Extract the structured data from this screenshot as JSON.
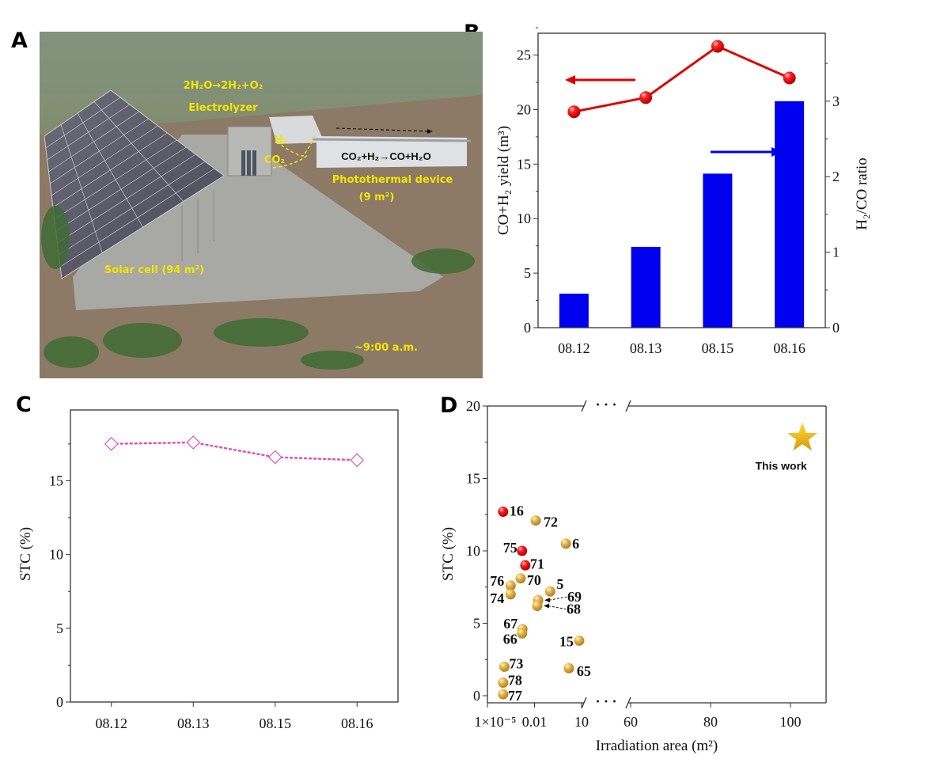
{
  "panel_letters": {
    "a": "A",
    "b": "B",
    "c": "C",
    "d": "D"
  },
  "photo": {
    "electrolysis_reaction": "2H₂O→2H₂+O₂",
    "electrolyzer_label": "Electrolyzer",
    "h2_label": "H₂",
    "co2_label": "CO₂",
    "photothermal_reaction": "CO₂+H₂→CO+H₂O",
    "photothermal_label": "Photothermal device",
    "photothermal_area": "(9 m²)",
    "solar_cell_label": "Solar cell (94 m²)",
    "time_label": "~9:00 a.m."
  },
  "chart_data": [
    {
      "panel": "B",
      "type": "bar+line",
      "categories": [
        "08.12",
        "08.13",
        "08.15",
        "08.16"
      ],
      "xlabel": "",
      "ylabel_left": "CO+H₂ yield (m³)",
      "ylabel_right": "H₂/CO ratio",
      "ylim_left": [
        0,
        27
      ],
      "ylim_right": [
        0,
        3.9
      ],
      "yticks_left": [
        "0",
        "5",
        "10",
        "15",
        "20",
        "25"
      ],
      "yticks_right": [
        "0",
        "1",
        "2",
        "3"
      ],
      "series": [
        {
          "axis": "left",
          "type": "line",
          "marker": "sphere",
          "color": "#e00000",
          "values": [
            19.8,
            21.1,
            25.8,
            22.9
          ]
        },
        {
          "axis": "right",
          "type": "bar",
          "color": "#0000f0",
          "values": [
            0.45,
            1.07,
            2.04,
            3.0
          ]
        }
      ],
      "grid": false
    },
    {
      "panel": "C",
      "type": "line",
      "categories": [
        "08.12",
        "08.13",
        "08.15",
        "08.16"
      ],
      "xlabel": "",
      "ylabel": "STC  (%)",
      "ylim": [
        0,
        19.8
      ],
      "yticks": [
        "0",
        "5",
        "10",
        "15"
      ],
      "series": [
        {
          "values": [
            17.5,
            17.6,
            16.6,
            16.4
          ],
          "color": "#e050c0",
          "marker": "open-diamond",
          "line": "dotted"
        }
      ],
      "grid": false
    },
    {
      "panel": "D",
      "type": "scatter",
      "xlabel": "Irradiation area (m²)",
      "ylabel": "STC (%)",
      "x_axis": "broken: log 1×10⁻⁵–10, linear 60–108",
      "xticks": [
        "1×10⁻⁵",
        "0.01",
        "10",
        "60",
        "80",
        "100"
      ],
      "xtick_values": [
        1e-05,
        0.01,
        10,
        60,
        80,
        100
      ],
      "yticks": [
        "0",
        "5",
        "10",
        "15",
        "20"
      ],
      "ylim": [
        -0.5,
        20
      ],
      "break_mark": "· · ·",
      "colors": {
        "reference": "#e0a820",
        "highlight": "#e00000",
        "this_work": "#f0b800"
      },
      "points": [
        {
          "label": "16",
          "x": 0.0001,
          "y": 12.7,
          "color": "red"
        },
        {
          "label": "72",
          "x": 0.012,
          "y": 12.1,
          "color": "gold"
        },
        {
          "label": "6",
          "x": 1.0,
          "y": 10.5,
          "color": "gold"
        },
        {
          "label": "75",
          "x": 0.0016,
          "y": 10.0,
          "color": "red"
        },
        {
          "label": "71",
          "x": 0.0026,
          "y": 9.0,
          "color": "red"
        },
        {
          "label": "70",
          "x": 0.0013,
          "y": 8.1,
          "color": "gold"
        },
        {
          "label": "76",
          "x": 0.0003,
          "y": 7.6,
          "color": "gold"
        },
        {
          "label": "74",
          "x": 0.0003,
          "y": 7.0,
          "color": "gold"
        },
        {
          "label": "5",
          "x": 0.1,
          "y": 7.2,
          "color": "gold"
        },
        {
          "label": "69",
          "x": 0.017,
          "y": 6.6,
          "color": "gold"
        },
        {
          "label": "68",
          "x": 0.015,
          "y": 6.2,
          "color": "gold"
        },
        {
          "label": "67",
          "x": 0.0017,
          "y": 4.6,
          "color": "gold"
        },
        {
          "label": "66",
          "x": 0.0016,
          "y": 4.3,
          "color": "gold"
        },
        {
          "label": "15",
          "x": 7,
          "y": 3.8,
          "color": "gold"
        },
        {
          "label": "73",
          "x": 0.00012,
          "y": 2.0,
          "color": "gold"
        },
        {
          "label": "65",
          "x": 1.55,
          "y": 1.9,
          "color": "gold"
        },
        {
          "label": "78",
          "x": 0.0001,
          "y": 0.9,
          "color": "gold"
        },
        {
          "label": "77",
          "x": 0.0001,
          "y": 0.1,
          "color": "gold"
        }
      ],
      "this_work": {
        "label": "This work",
        "x": 103,
        "y": 17.8,
        "marker": "star"
      },
      "grid": false
    }
  ]
}
